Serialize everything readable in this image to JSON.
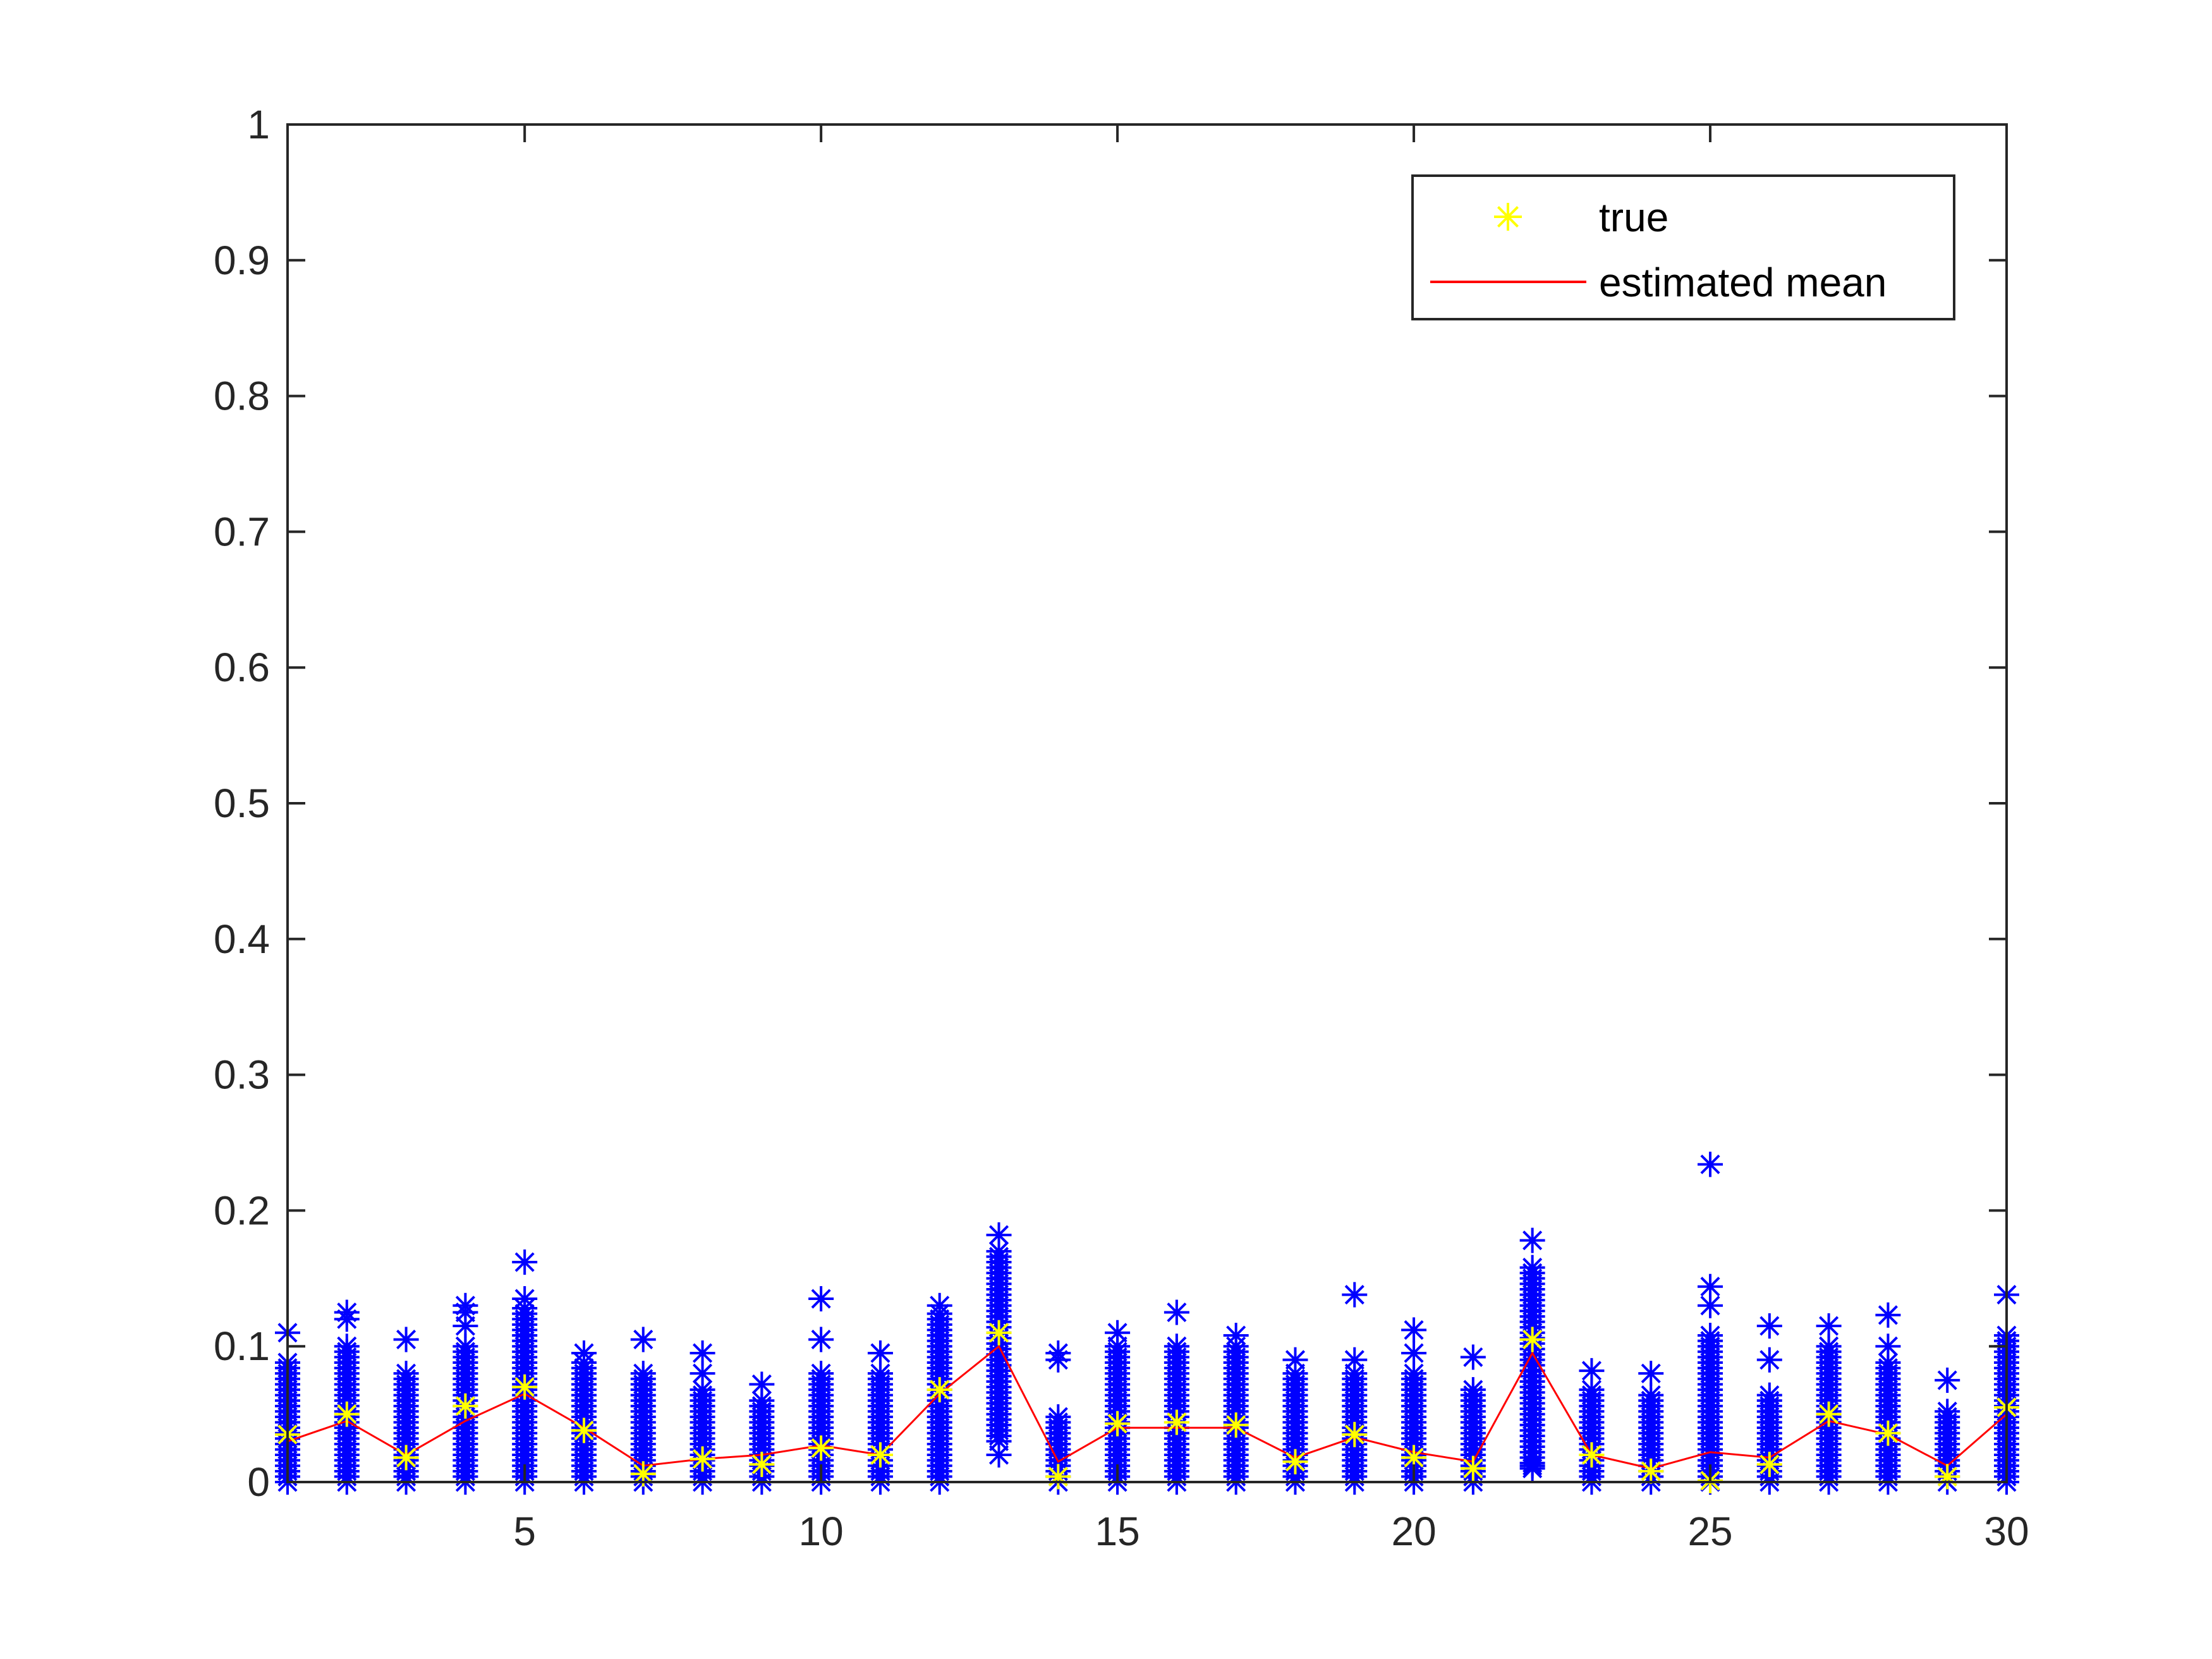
{
  "chart_data": {
    "type": "scatter",
    "title": "",
    "xlabel": "",
    "ylabel": "",
    "xlim": [
      1,
      30
    ],
    "ylim": [
      0,
      1
    ],
    "x_ticks": [
      "5",
      "10",
      "15",
      "20",
      "25",
      "30"
    ],
    "y_ticks": [
      "0",
      "0.1",
      "0.2",
      "0.3",
      "0.4",
      "0.5",
      "0.6",
      "0.7",
      "0.8",
      "0.9",
      "1"
    ],
    "grid": false,
    "legend": {
      "placement": "top-right",
      "entries": [
        {
          "label": "true",
          "marker": "asterisk",
          "color": "#ffff00"
        },
        {
          "label": "estimated mean",
          "marker": "line",
          "color": "#ff0000"
        }
      ]
    },
    "samples_color": "#0000ff",
    "true_color": "#ffff00",
    "mean_color": "#ff0000",
    "x": [
      1,
      2,
      3,
      4,
      5,
      6,
      7,
      8,
      9,
      10,
      11,
      12,
      13,
      14,
      15,
      16,
      17,
      18,
      19,
      20,
      21,
      22,
      23,
      24,
      25,
      26,
      27,
      28,
      29,
      30
    ],
    "sample_ranges": [
      [
        0,
        0.09
      ],
      [
        0,
        0.1
      ],
      [
        0,
        0.08
      ],
      [
        0,
        0.1
      ],
      [
        0,
        0.13
      ],
      [
        0,
        0.09
      ],
      [
        0,
        0.08
      ],
      [
        0,
        0.07
      ],
      [
        0,
        0.06
      ],
      [
        0,
        0.08
      ],
      [
        0,
        0.08
      ],
      [
        0,
        0.125
      ],
      [
        0.03,
        0.17
      ],
      [
        0,
        0.05
      ],
      [
        0,
        0.1
      ],
      [
        0,
        0.1
      ],
      [
        0,
        0.1
      ],
      [
        0,
        0.08
      ],
      [
        0,
        0.08
      ],
      [
        0,
        0.08
      ],
      [
        0,
        0.07
      ],
      [
        0.01,
        0.16
      ],
      [
        0,
        0.07
      ],
      [
        0,
        0.065
      ],
      [
        0,
        0.11
      ],
      [
        0,
        0.065
      ],
      [
        0,
        0.1
      ],
      [
        0,
        0.09
      ],
      [
        0,
        0.055
      ],
      [
        0,
        0.11
      ]
    ],
    "sample_outliers": [
      [
        0.11
      ],
      [
        0.12,
        0.125
      ],
      [
        0.105
      ],
      [
        0.13,
        0.125,
        0.115
      ],
      [
        0.162,
        0.135
      ],
      [
        0.095
      ],
      [
        0.105
      ],
      [
        0.095,
        0.08
      ],
      [
        0.072
      ],
      [
        0.135,
        0.105
      ],
      [
        0.095
      ],
      [
        0.13
      ],
      [
        0.182,
        0.02
      ],
      [
        0.095,
        0.09
      ],
      [
        0.11
      ],
      [
        0.125
      ],
      [
        0.108
      ],
      [
        0.09
      ],
      [
        0.138,
        0.09
      ],
      [
        0.112,
        0.095
      ],
      [
        0.092
      ],
      [
        0.178,
        0.012
      ],
      [
        0.082
      ],
      [
        0.08
      ],
      [
        0.234,
        0.144,
        0.13
      ],
      [
        0.115,
        0.09
      ],
      [
        0.115
      ],
      [
        0.123,
        0.1
      ],
      [
        0.075
      ],
      [
        0.138
      ]
    ],
    "true_values": [
      0.035,
      0.05,
      0.018,
      0.056,
      0.07,
      0.038,
      0.006,
      0.017,
      0.013,
      0.025,
      0.02,
      0.068,
      0.11,
      0.004,
      0.043,
      0.044,
      0.042,
      0.015,
      0.035,
      0.018,
      0.01,
      0.105,
      0.02,
      0.008,
      0.001,
      0.013,
      0.05,
      0.036,
      0.004,
      0.055
    ],
    "estimated_mean": [
      0.03,
      0.045,
      0.02,
      0.045,
      0.065,
      0.04,
      0.012,
      0.017,
      0.02,
      0.027,
      0.02,
      0.065,
      0.1,
      0.015,
      0.04,
      0.04,
      0.04,
      0.018,
      0.033,
      0.022,
      0.015,
      0.095,
      0.02,
      0.01,
      0.022,
      0.018,
      0.045,
      0.035,
      0.012,
      0.05
    ]
  }
}
